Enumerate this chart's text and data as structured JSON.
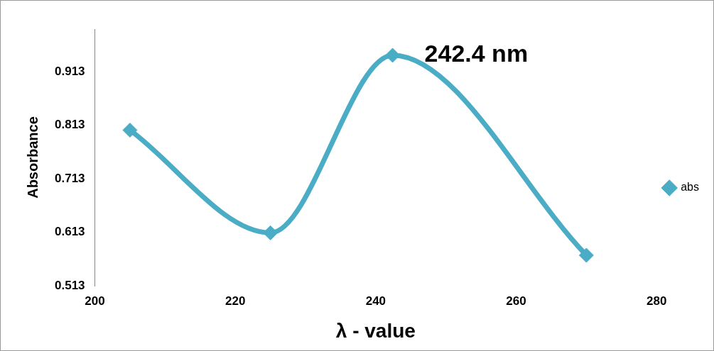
{
  "chart_data": {
    "type": "line",
    "xlabel": "λ - value",
    "ylabel": "Absorbance",
    "x": [
      205,
      225,
      242.4,
      270
    ],
    "series": [
      {
        "name": "abs",
        "color": "#4bacc6",
        "values": [
          0.804,
          0.612,
          0.944,
          0.57
        ]
      }
    ],
    "xlim": [
      200,
      280
    ],
    "xticks": [
      200,
      220,
      240,
      260,
      280
    ],
    "ylim": [
      0.513,
      0.993
    ],
    "yticks": [
      0.513,
      0.613,
      0.713,
      0.813,
      0.913
    ],
    "annotations": [
      {
        "text": "242.4 nm",
        "x": 242.4,
        "y": 0.944
      }
    ],
    "legend": "right",
    "marker": "diamond",
    "line_style": "solid",
    "grid": false
  }
}
